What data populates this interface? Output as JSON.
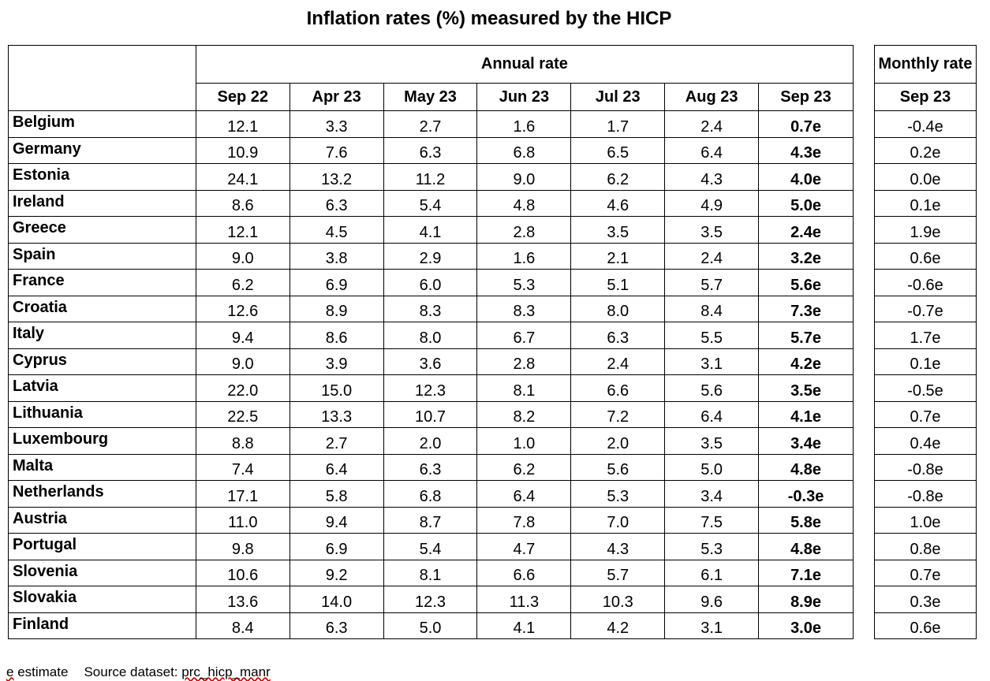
{
  "title": "Inflation rates (%) measured by the HICP",
  "annual_header": "Annual rate",
  "monthly_header": "Monthly rate",
  "columns": [
    "Sep 22",
    "Apr 23",
    "May 23",
    "Jun 23",
    "Jul 23",
    "Aug 23",
    "Sep 23"
  ],
  "monthly_column": "Sep 23",
  "rows": [
    {
      "country": "Belgium",
      "values": [
        "12.1",
        "3.3",
        "2.7",
        "1.6",
        "1.7",
        "2.4",
        "0.7e"
      ],
      "monthly": "-0.4e"
    },
    {
      "country": "Germany",
      "values": [
        "10.9",
        "7.6",
        "6.3",
        "6.8",
        "6.5",
        "6.4",
        "4.3e"
      ],
      "monthly": "0.2e"
    },
    {
      "country": "Estonia",
      "values": [
        "24.1",
        "13.2",
        "11.2",
        "9.0",
        "6.2",
        "4.3",
        "4.0e"
      ],
      "monthly": "0.0e"
    },
    {
      "country": "Ireland",
      "values": [
        "8.6",
        "6.3",
        "5.4",
        "4.8",
        "4.6",
        "4.9",
        "5.0e"
      ],
      "monthly": "0.1e"
    },
    {
      "country": "Greece",
      "values": [
        "12.1",
        "4.5",
        "4.1",
        "2.8",
        "3.5",
        "3.5",
        "2.4e"
      ],
      "monthly": "1.9e"
    },
    {
      "country": "Spain",
      "values": [
        "9.0",
        "3.8",
        "2.9",
        "1.6",
        "2.1",
        "2.4",
        "3.2e"
      ],
      "monthly": "0.6e"
    },
    {
      "country": "France",
      "values": [
        "6.2",
        "6.9",
        "6.0",
        "5.3",
        "5.1",
        "5.7",
        "5.6e"
      ],
      "monthly": "-0.6e"
    },
    {
      "country": "Croatia",
      "values": [
        "12.6",
        "8.9",
        "8.3",
        "8.3",
        "8.0",
        "8.4",
        "7.3e"
      ],
      "monthly": "-0.7e"
    },
    {
      "country": "Italy",
      "values": [
        "9.4",
        "8.6",
        "8.0",
        "6.7",
        "6.3",
        "5.5",
        "5.7e"
      ],
      "monthly": "1.7e"
    },
    {
      "country": "Cyprus",
      "values": [
        "9.0",
        "3.9",
        "3.6",
        "2.8",
        "2.4",
        "3.1",
        "4.2e"
      ],
      "monthly": "0.1e"
    },
    {
      "country": "Latvia",
      "values": [
        "22.0",
        "15.0",
        "12.3",
        "8.1",
        "6.6",
        "5.6",
        "3.5e"
      ],
      "monthly": "-0.5e"
    },
    {
      "country": "Lithuania",
      "values": [
        "22.5",
        "13.3",
        "10.7",
        "8.2",
        "7.2",
        "6.4",
        "4.1e"
      ],
      "monthly": "0.7e"
    },
    {
      "country": "Luxembourg",
      "values": [
        "8.8",
        "2.7",
        "2.0",
        "1.0",
        "2.0",
        "3.5",
        "3.4e"
      ],
      "monthly": "0.4e"
    },
    {
      "country": "Malta",
      "values": [
        "7.4",
        "6.4",
        "6.3",
        "6.2",
        "5.6",
        "5.0",
        "4.8e"
      ],
      "monthly": "-0.8e"
    },
    {
      "country": "Netherlands",
      "values": [
        "17.1",
        "5.8",
        "6.8",
        "6.4",
        "5.3",
        "3.4",
        "-0.3e"
      ],
      "monthly": "-0.8e"
    },
    {
      "country": "Austria",
      "values": [
        "11.0",
        "9.4",
        "8.7",
        "7.8",
        "7.0",
        "7.5",
        "5.8e"
      ],
      "monthly": "1.0e"
    },
    {
      "country": "Portugal",
      "values": [
        "9.8",
        "6.9",
        "5.4",
        "4.7",
        "4.3",
        "5.3",
        "4.8e"
      ],
      "monthly": "0.8e"
    },
    {
      "country": "Slovenia",
      "values": [
        "10.6",
        "9.2",
        "8.1",
        "6.6",
        "5.7",
        "6.1",
        "7.1e"
      ],
      "monthly": "0.7e"
    },
    {
      "country": "Slovakia",
      "values": [
        "13.6",
        "14.0",
        "12.3",
        "11.3",
        "10.3",
        "9.6",
        "8.9e"
      ],
      "monthly": "0.3e"
    },
    {
      "country": "Finland",
      "values": [
        "8.4",
        "6.3",
        "5.0",
        "4.1",
        "4.2",
        "3.1",
        "3.0e"
      ],
      "monthly": "0.6e"
    }
  ],
  "footer": {
    "e_mark": "e",
    "e_text": " estimate",
    "source_label": "Source dataset: ",
    "source_name": "prc_hicp_manr"
  }
}
